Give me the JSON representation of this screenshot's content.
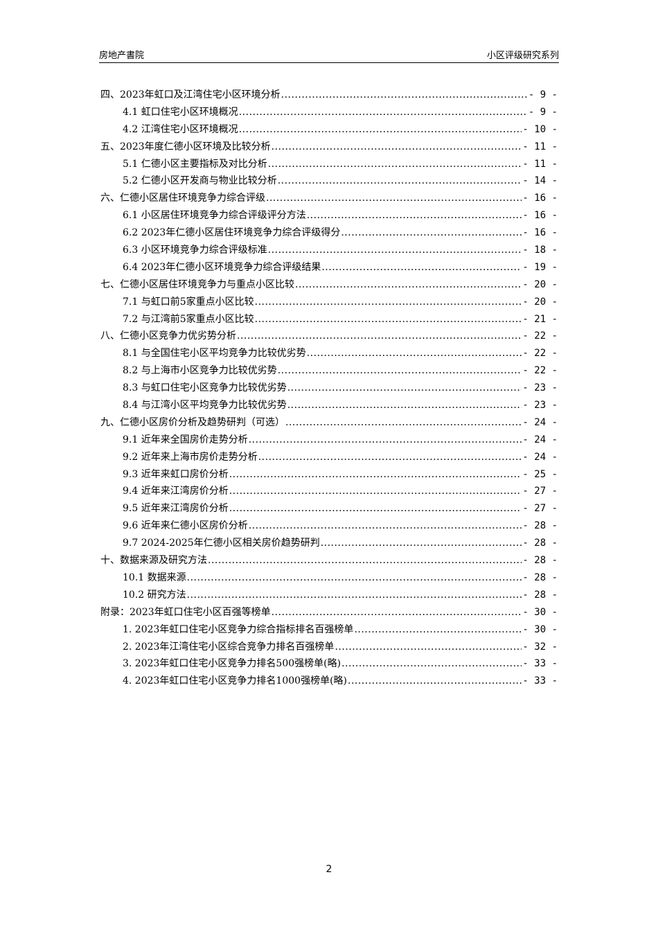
{
  "header": {
    "left": "房地产書院",
    "right": "小区评级研究系列"
  },
  "toc": [
    {
      "level": 1,
      "title": "四、2023年虹口及江湾住宅小区环境分析",
      "page": "- 9 -"
    },
    {
      "level": 2,
      "title": "4.1 虹口住宅小区环境概况",
      "page": "- 9 -"
    },
    {
      "level": 2,
      "title": "4.2 江湾住宅小区环境概况",
      "page": "- 10 -"
    },
    {
      "level": 1,
      "title": "五、2023年度仁德小区环境及比较分析",
      "page": "- 11 -"
    },
    {
      "level": 2,
      "title": "5.1 仁德小区主要指标及对比分析",
      "page": "- 11 -"
    },
    {
      "level": 2,
      "title": "5.2 仁德小区开发商与物业比较分析",
      "page": "- 14 -"
    },
    {
      "level": 1,
      "title": "六、仁德小区居住环境竞争力综合评级",
      "page": "- 16 -"
    },
    {
      "level": 2,
      "title": "6.1 小区居住环境竞争力综合评级评分方法",
      "page": "- 16 -"
    },
    {
      "level": 2,
      "title": "6.2 2023年仁德小区居住环境竞争力综合评级得分",
      "page": "- 16 -"
    },
    {
      "level": 2,
      "title": "6.3 小区环境竞争力综合评级标准",
      "page": "- 18 -"
    },
    {
      "level": 2,
      "title": "6.4 2023年仁德小区环境竞争力综合评级结果",
      "page": "- 19 -"
    },
    {
      "level": 1,
      "title": "七、仁德小区居住环境竞争力与重点小区比较",
      "page": "- 20 -"
    },
    {
      "level": 2,
      "title": "7.1 与虹口前5家重点小区比较",
      "page": "- 20 -"
    },
    {
      "level": 2,
      "title": "7.2 与江湾前5家重点小区比较",
      "page": "- 21 -"
    },
    {
      "level": 1,
      "title": "八、仁德小区竞争力优劣势分析",
      "page": "- 22 -"
    },
    {
      "level": 2,
      "title": "8.1 与全国住宅小区平均竞争力比较优劣势",
      "page": "- 22 -"
    },
    {
      "level": 2,
      "title": "8.2 与上海市小区竞争力比较优劣势",
      "page": "- 22 -"
    },
    {
      "level": 2,
      "title": "8.3 与虹口住宅小区竞争力比较优劣势",
      "page": "- 23 -"
    },
    {
      "level": 2,
      "title": "8.4 与江湾小区平均竞争力比较优劣势",
      "page": "- 23 -"
    },
    {
      "level": 1,
      "title": "九、仁德小区房价分析及趋势研判（可选）",
      "page": "- 24 -"
    },
    {
      "level": 2,
      "title": "9.1 近年来全国房价走势分析",
      "page": "- 24 -"
    },
    {
      "level": 2,
      "title": "9.2 近年来上海市房价走势分析",
      "page": "- 24 -"
    },
    {
      "level": 2,
      "title": "9.3 近年来虹口房价分析",
      "page": "- 25 -"
    },
    {
      "level": 2,
      "title": "9.4 近年来江湾房价分析",
      "page": "- 27 -"
    },
    {
      "level": 2,
      "title": "9.5 近年来江湾房价分析",
      "page": "- 27 -"
    },
    {
      "level": 2,
      "title": "9.6 近年来仁德小区房价分析",
      "page": "- 28 -"
    },
    {
      "level": 2,
      "title": "9.7 2024-2025年仁德小区相关房价趋势研判",
      "page": "- 28 -"
    },
    {
      "level": 1,
      "title": "十、数据来源及研究方法",
      "page": "- 28 -"
    },
    {
      "level": 2,
      "title": "10.1 数据来源",
      "page": "- 28 -"
    },
    {
      "level": 2,
      "title": "10.2 研究方法",
      "page": "- 28 -"
    },
    {
      "level": 1,
      "title": "附录：2023年虹口住宅小区百强等榜单",
      "page": "- 30 -"
    },
    {
      "level": 2,
      "title": "1.  2023年虹口住宅小区竞争力综合指标排名百强榜单",
      "page": "- 30 -"
    },
    {
      "level": 2,
      "title": "2.  2023年江湾住宅小区综合竞争力排名百强榜单",
      "page": "- 32 -"
    },
    {
      "level": 2,
      "title": "3.  2023年虹口住宅小区竞争力排名500强榜单(略)",
      "page": "- 33 -"
    },
    {
      "level": 2,
      "title": "4.  2023年虹口住宅小区竞争力排名1000强榜单(略)",
      "page": "- 33 -"
    }
  ],
  "page_number": "2"
}
